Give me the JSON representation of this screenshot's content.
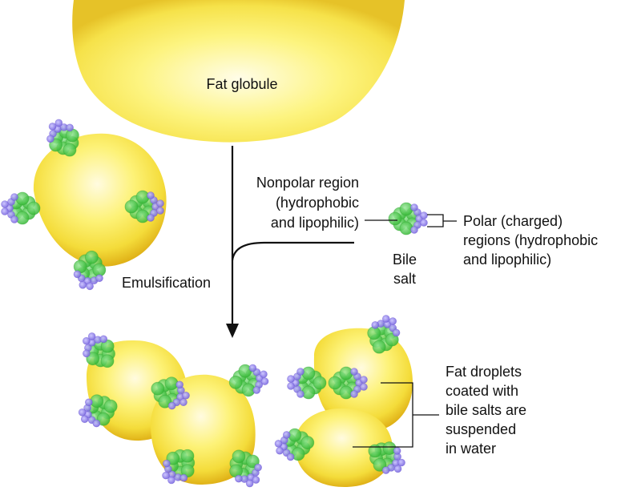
{
  "labels": {
    "fat_globule": "Fat globule",
    "nonpolar": [
      "Nonpolar region",
      "(hydrophobic",
      "and lipophilic)"
    ],
    "bile_salt": [
      "Bile",
      "salt"
    ],
    "polar": [
      "Polar (charged)",
      "regions (hydrophobic",
      "and lipophilic)"
    ],
    "emulsification": "Emulsification",
    "droplets": [
      "Fat droplets",
      "coated with",
      "bile salts are",
      "suspended",
      "in water"
    ]
  },
  "colors": {
    "fat_light": "#fffbe0",
    "fat_mid": "#f8ec58",
    "fat_dark": "#e0b218",
    "nonpolar_green": "#4cc94c",
    "polar_purple": "#8878e8",
    "line": "#111111"
  }
}
